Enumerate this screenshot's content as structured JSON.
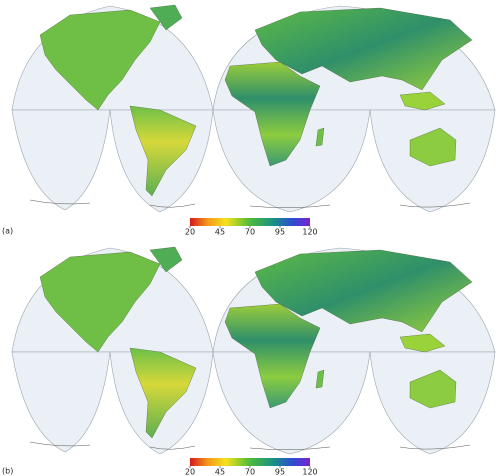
{
  "panels": [
    {
      "label": "(a)",
      "colorbar": {
        "range": [
          20,
          120
        ],
        "ticks": [
          20,
          45,
          70,
          95,
          120
        ]
      }
    },
    {
      "label": "(b)",
      "colorbar": {
        "range": [
          20,
          120
        ],
        "ticks": [
          20,
          45,
          70,
          95,
          120
        ]
      }
    }
  ]
}
